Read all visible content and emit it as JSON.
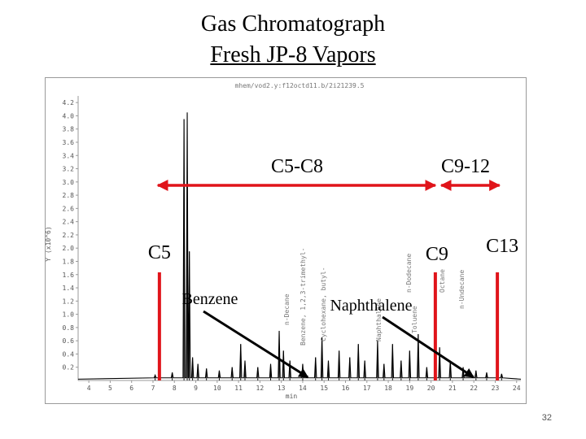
{
  "slide": {
    "title": "Gas Chromatograph",
    "subtitle": "Fresh JP-8 Vapors",
    "page_number": "32"
  },
  "chart_data": {
    "type": "line",
    "title": "Gas Chromatograph",
    "subtitle": "Fresh JP-8 Vapors",
    "header_text": "mhem/vod2.y:f12octd11.b/2i21239.5",
    "xlabel": "min",
    "ylabel": "Y (x10^6)",
    "xlim": [
      3.5,
      24.2
    ],
    "ylim": [
      0,
      4.3
    ],
    "x_ticks": [
      4,
      5,
      6,
      7,
      8,
      9,
      10,
      11,
      12,
      13,
      14,
      15,
      16,
      17,
      18,
      19,
      20,
      21,
      22,
      23,
      24
    ],
    "y_ticks": [
      "4.2",
      "4.0",
      "3.8",
      "3.6",
      "3.4",
      "3.2",
      "3.0",
      "2.8",
      "2.6",
      "2.4",
      "2.2",
      "2.0",
      "1.8",
      "1.6",
      "1.4",
      "1.2",
      "1.0",
      "0.8",
      "0.6",
      "0.4",
      "0.2"
    ],
    "grid": false,
    "series": [
      {
        "color": "#000000",
        "peaks": [
          {
            "x": 7.1,
            "y": 0.08
          },
          {
            "x": 7.9,
            "y": 0.12
          },
          {
            "x": 8.45,
            "y": 3.95
          },
          {
            "x": 8.6,
            "y": 4.05
          },
          {
            "x": 8.7,
            "y": 1.95
          },
          {
            "x": 8.85,
            "y": 0.35
          },
          {
            "x": 9.1,
            "y": 0.25
          },
          {
            "x": 9.5,
            "y": 0.18
          },
          {
            "x": 10.1,
            "y": 0.15
          },
          {
            "x": 10.7,
            "y": 0.2
          },
          {
            "x": 11.1,
            "y": 0.55
          },
          {
            "x": 11.3,
            "y": 0.3
          },
          {
            "x": 11.9,
            "y": 0.2
          },
          {
            "x": 12.5,
            "y": 0.25
          },
          {
            "x": 12.9,
            "y": 0.75
          },
          {
            "x": 13.1,
            "y": 0.45
          },
          {
            "x": 13.4,
            "y": 0.3
          },
          {
            "x": 14.0,
            "y": 0.25
          },
          {
            "x": 14.6,
            "y": 0.35
          },
          {
            "x": 14.9,
            "y": 0.65
          },
          {
            "x": 15.2,
            "y": 0.3
          },
          {
            "x": 15.7,
            "y": 0.45
          },
          {
            "x": 16.2,
            "y": 0.35
          },
          {
            "x": 16.6,
            "y": 0.55
          },
          {
            "x": 16.9,
            "y": 0.3
          },
          {
            "x": 17.5,
            "y": 0.6
          },
          {
            "x": 17.8,
            "y": 0.25
          },
          {
            "x": 18.2,
            "y": 0.55
          },
          {
            "x": 18.6,
            "y": 0.3
          },
          {
            "x": 19.0,
            "y": 0.45
          },
          {
            "x": 19.4,
            "y": 0.7
          },
          {
            "x": 19.8,
            "y": 0.2
          },
          {
            "x": 20.4,
            "y": 0.5
          },
          {
            "x": 20.9,
            "y": 0.3
          },
          {
            "x": 21.5,
            "y": 0.2
          },
          {
            "x": 22.1,
            "y": 0.15
          },
          {
            "x": 22.6,
            "y": 0.12
          },
          {
            "x": 23.3,
            "y": 0.1
          }
        ]
      }
    ],
    "compound_annotations": [
      "n-Decane",
      "Benzene, 1,2,3-trimethyl-",
      "Cyclohexane, butyl-",
      "Naphthalene",
      "n-Dodecane",
      "Toluene",
      "Octane",
      "n-Undecane"
    ],
    "ranges": [
      {
        "label": "C5-C8",
        "from": 7.3,
        "to": 20.2,
        "color": "#e0141a"
      },
      {
        "label": "C9-12",
        "from": 20.4,
        "to": 23.2,
        "color": "#e0141a"
      }
    ],
    "markers": [
      {
        "label": "C5",
        "x": 7.3,
        "color": "#e0141a"
      },
      {
        "label": "C9",
        "x": 20.2,
        "color": "#e0141a"
      },
      {
        "label": "C13",
        "x": 23.1,
        "color": "#e0141a"
      }
    ],
    "compound_labels": [
      {
        "label": "Benzene",
        "target_x": 15.0
      },
      {
        "label": "Naphthalene",
        "target_x": 22.9
      }
    ]
  }
}
